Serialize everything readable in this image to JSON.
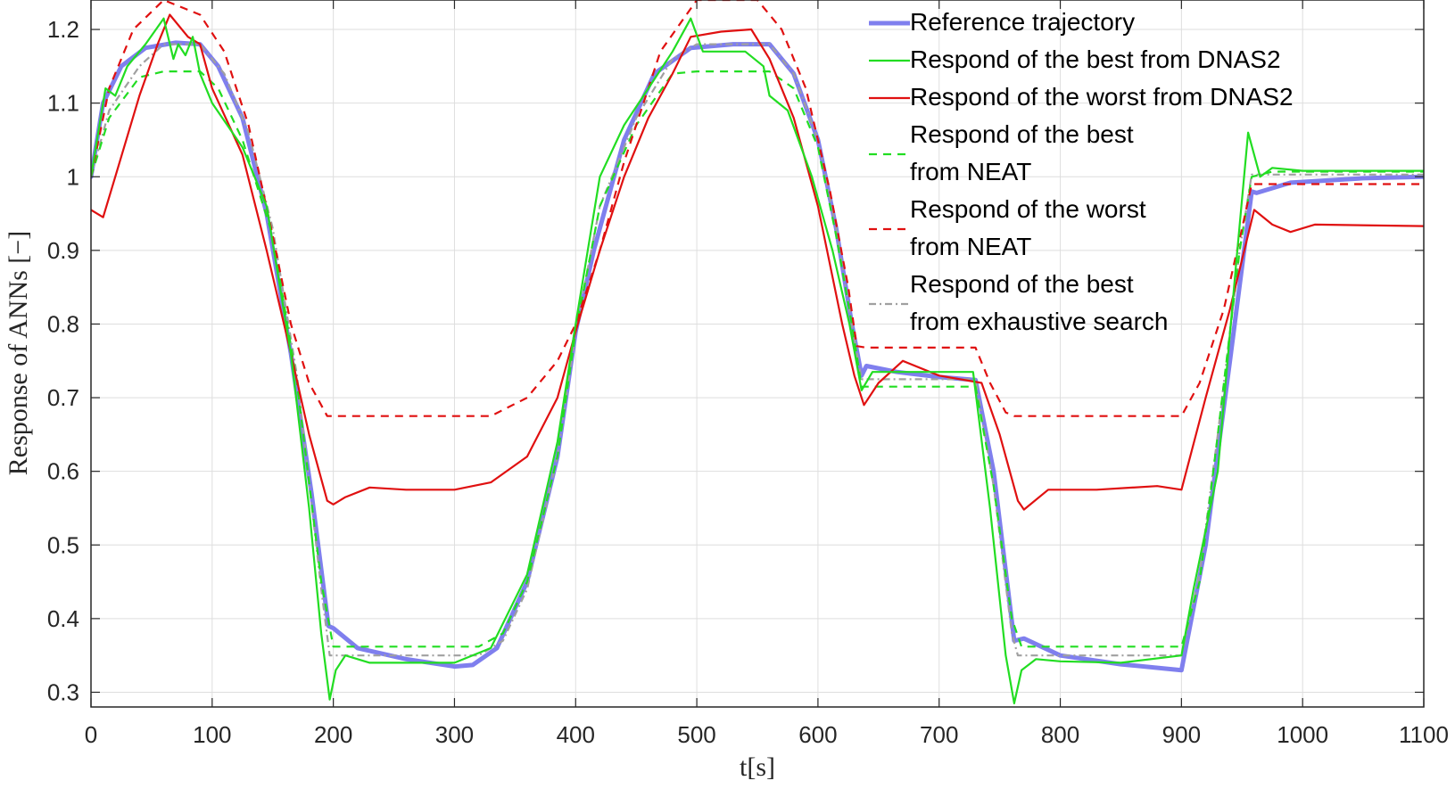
{
  "chart_data": {
    "type": "line",
    "xlabel": "t[s]",
    "ylabel": "Response of ANNs [−]",
    "xlim": [
      0,
      1100
    ],
    "ylim": [
      0.28,
      1.24
    ],
    "x_ticks": [
      0,
      100,
      200,
      300,
      400,
      500,
      600,
      700,
      800,
      900,
      1000,
      1100
    ],
    "y_ticks": [
      0.3,
      0.4,
      0.5,
      0.6,
      0.7,
      0.8,
      0.9,
      1,
      1.1,
      1.2
    ],
    "grid": true,
    "legend_position": "top-right",
    "series": [
      {
        "name": "Reference trajectory",
        "color": "#7f7fee",
        "style": "solid-thick",
        "points": [
          [
            0,
            1.0
          ],
          [
            10,
            1.1
          ],
          [
            25,
            1.15
          ],
          [
            45,
            1.175
          ],
          [
            70,
            1.182
          ],
          [
            90,
            1.18
          ],
          [
            105,
            1.15
          ],
          [
            125,
            1.08
          ],
          [
            145,
            0.95
          ],
          [
            165,
            0.76
          ],
          [
            182,
            0.57
          ],
          [
            196,
            0.39
          ],
          [
            200,
            0.387
          ],
          [
            220,
            0.36
          ],
          [
            260,
            0.345
          ],
          [
            300,
            0.335
          ],
          [
            315,
            0.337
          ],
          [
            335,
            0.36
          ],
          [
            360,
            0.45
          ],
          [
            385,
            0.62
          ],
          [
            400,
            0.79
          ],
          [
            415,
            0.9
          ],
          [
            440,
            1.05
          ],
          [
            465,
            1.14
          ],
          [
            495,
            1.175
          ],
          [
            530,
            1.18
          ],
          [
            560,
            1.18
          ],
          [
            580,
            1.14
          ],
          [
            600,
            1.05
          ],
          [
            615,
            0.93
          ],
          [
            628,
            0.8
          ],
          [
            636,
            0.73
          ],
          [
            640,
            0.743
          ],
          [
            665,
            0.735
          ],
          [
            700,
            0.728
          ],
          [
            730,
            0.724
          ],
          [
            745,
            0.6
          ],
          [
            762,
            0.37
          ],
          [
            770,
            0.373
          ],
          [
            800,
            0.35
          ],
          [
            850,
            0.338
          ],
          [
            900,
            0.33
          ],
          [
            920,
            0.5
          ],
          [
            940,
            0.75
          ],
          [
            958,
            0.98
          ],
          [
            962,
            0.978
          ],
          [
            990,
            0.992
          ],
          [
            1050,
            0.998
          ],
          [
            1100,
            1.0
          ]
        ]
      },
      {
        "name": "Respond of the best from DNAS2",
        "color": "#22dd22",
        "style": "solid",
        "points": [
          [
            0,
            1.0
          ],
          [
            12,
            1.12
          ],
          [
            20,
            1.11
          ],
          [
            30,
            1.15
          ],
          [
            45,
            1.18
          ],
          [
            60,
            1.215
          ],
          [
            68,
            1.16
          ],
          [
            72,
            1.18
          ],
          [
            78,
            1.165
          ],
          [
            84,
            1.19
          ],
          [
            90,
            1.14
          ],
          [
            100,
            1.1
          ],
          [
            125,
            1.04
          ],
          [
            145,
            0.96
          ],
          [
            165,
            0.76
          ],
          [
            180,
            0.55
          ],
          [
            190,
            0.38
          ],
          [
            197,
            0.29
          ],
          [
            202,
            0.33
          ],
          [
            210,
            0.35
          ],
          [
            230,
            0.34
          ],
          [
            300,
            0.34
          ],
          [
            330,
            0.36
          ],
          [
            360,
            0.46
          ],
          [
            385,
            0.64
          ],
          [
            400,
            0.8
          ],
          [
            420,
            1.0
          ],
          [
            440,
            1.07
          ],
          [
            460,
            1.12
          ],
          [
            480,
            1.17
          ],
          [
            495,
            1.215
          ],
          [
            505,
            1.17
          ],
          [
            520,
            1.17
          ],
          [
            540,
            1.17
          ],
          [
            555,
            1.15
          ],
          [
            560,
            1.11
          ],
          [
            575,
            1.09
          ],
          [
            595,
            1.0
          ],
          [
            612,
            0.9
          ],
          [
            626,
            0.8
          ],
          [
            636,
            0.71
          ],
          [
            645,
            0.735
          ],
          [
            700,
            0.735
          ],
          [
            728,
            0.735
          ],
          [
            742,
            0.55
          ],
          [
            755,
            0.35
          ],
          [
            762,
            0.285
          ],
          [
            768,
            0.33
          ],
          [
            780,
            0.345
          ],
          [
            800,
            0.342
          ],
          [
            850,
            0.34
          ],
          [
            900,
            0.35
          ],
          [
            910,
            0.44
          ],
          [
            930,
            0.6
          ],
          [
            945,
            0.88
          ],
          [
            955,
            1.06
          ],
          [
            965,
            1.0
          ],
          [
            975,
            1.012
          ],
          [
            1000,
            1.008
          ],
          [
            1100,
            1.008
          ]
        ]
      },
      {
        "name": "Respond of the worst from DNAS2",
        "color": "#e01010",
        "style": "solid",
        "points": [
          [
            0,
            0.955
          ],
          [
            10,
            0.945
          ],
          [
            20,
            1.0
          ],
          [
            40,
            1.11
          ],
          [
            55,
            1.18
          ],
          [
            65,
            1.22
          ],
          [
            80,
            1.19
          ],
          [
            90,
            1.18
          ],
          [
            100,
            1.12
          ],
          [
            125,
            1.03
          ],
          [
            145,
            0.9
          ],
          [
            165,
            0.76
          ],
          [
            180,
            0.65
          ],
          [
            195,
            0.56
          ],
          [
            200,
            0.555
          ],
          [
            210,
            0.565
          ],
          [
            230,
            0.578
          ],
          [
            260,
            0.575
          ],
          [
            300,
            0.575
          ],
          [
            330,
            0.585
          ],
          [
            360,
            0.62
          ],
          [
            385,
            0.7
          ],
          [
            400,
            0.79
          ],
          [
            420,
            0.9
          ],
          [
            440,
            1.0
          ],
          [
            460,
            1.08
          ],
          [
            480,
            1.14
          ],
          [
            495,
            1.19
          ],
          [
            520,
            1.197
          ],
          [
            545,
            1.2
          ],
          [
            560,
            1.16
          ],
          [
            580,
            1.08
          ],
          [
            600,
            0.96
          ],
          [
            620,
            0.8
          ],
          [
            630,
            0.73
          ],
          [
            638,
            0.69
          ],
          [
            650,
            0.72
          ],
          [
            670,
            0.75
          ],
          [
            700,
            0.73
          ],
          [
            735,
            0.72
          ],
          [
            750,
            0.65
          ],
          [
            765,
            0.56
          ],
          [
            770,
            0.548
          ],
          [
            790,
            0.575
          ],
          [
            830,
            0.575
          ],
          [
            880,
            0.58
          ],
          [
            900,
            0.575
          ],
          [
            920,
            0.7
          ],
          [
            940,
            0.82
          ],
          [
            960,
            0.955
          ],
          [
            975,
            0.935
          ],
          [
            990,
            0.925
          ],
          [
            1010,
            0.935
          ],
          [
            1100,
            0.933
          ]
        ]
      },
      {
        "name": "Respond of the best from NEAT",
        "color": "#22dd22",
        "style": "dashed",
        "points": [
          [
            0,
            1.0
          ],
          [
            15,
            1.08
          ],
          [
            40,
            1.135
          ],
          [
            60,
            1.143
          ],
          [
            90,
            1.143
          ],
          [
            105,
            1.12
          ],
          [
            125,
            1.05
          ],
          [
            150,
            0.92
          ],
          [
            170,
            0.72
          ],
          [
            190,
            0.45
          ],
          [
            200,
            0.362
          ],
          [
            230,
            0.362
          ],
          [
            320,
            0.362
          ],
          [
            340,
            0.38
          ],
          [
            360,
            0.45
          ],
          [
            385,
            0.62
          ],
          [
            400,
            0.79
          ],
          [
            420,
            0.96
          ],
          [
            450,
            1.07
          ],
          [
            480,
            1.14
          ],
          [
            500,
            1.143
          ],
          [
            560,
            1.143
          ],
          [
            580,
            1.12
          ],
          [
            600,
            1.04
          ],
          [
            615,
            0.92
          ],
          [
            628,
            0.8
          ],
          [
            636,
            0.715
          ],
          [
            645,
            0.715
          ],
          [
            730,
            0.715
          ],
          [
            745,
            0.58
          ],
          [
            760,
            0.4
          ],
          [
            768,
            0.362
          ],
          [
            800,
            0.362
          ],
          [
            900,
            0.362
          ],
          [
            915,
            0.45
          ],
          [
            930,
            0.65
          ],
          [
            948,
            0.9
          ],
          [
            958,
            1.0
          ],
          [
            975,
            1.007
          ],
          [
            1100,
            1.007
          ]
        ]
      },
      {
        "name": "Respond of the worst from NEAT",
        "color": "#e01010",
        "style": "dashed",
        "points": [
          [
            0,
            1.0
          ],
          [
            15,
            1.12
          ],
          [
            35,
            1.2
          ],
          [
            60,
            1.24
          ],
          [
            90,
            1.22
          ],
          [
            110,
            1.17
          ],
          [
            130,
            1.07
          ],
          [
            150,
            0.92
          ],
          [
            165,
            0.8
          ],
          [
            180,
            0.72
          ],
          [
            195,
            0.675
          ],
          [
            250,
            0.675
          ],
          [
            330,
            0.675
          ],
          [
            360,
            0.7
          ],
          [
            385,
            0.75
          ],
          [
            400,
            0.8
          ],
          [
            420,
            0.9
          ],
          [
            440,
            1.02
          ],
          [
            470,
            1.17
          ],
          [
            500,
            1.24
          ],
          [
            550,
            1.24
          ],
          [
            570,
            1.2
          ],
          [
            590,
            1.12
          ],
          [
            610,
            0.98
          ],
          [
            625,
            0.85
          ],
          [
            632,
            0.77
          ],
          [
            640,
            0.768
          ],
          [
            730,
            0.768
          ],
          [
            742,
            0.72
          ],
          [
            755,
            0.68
          ],
          [
            762,
            0.675
          ],
          [
            800,
            0.675
          ],
          [
            900,
            0.675
          ],
          [
            915,
            0.72
          ],
          [
            935,
            0.82
          ],
          [
            950,
            0.93
          ],
          [
            958,
            0.99
          ],
          [
            975,
            0.99
          ],
          [
            1100,
            0.99
          ]
        ]
      },
      {
        "name": "Respond of the best from exhaustive search",
        "color": "#a0a0a0",
        "style": "dash-dot",
        "points": [
          [
            0,
            1.0
          ],
          [
            15,
            1.09
          ],
          [
            40,
            1.15
          ],
          [
            60,
            1.18
          ],
          [
            90,
            1.18
          ],
          [
            110,
            1.14
          ],
          [
            130,
            1.06
          ],
          [
            150,
            0.93
          ],
          [
            170,
            0.73
          ],
          [
            190,
            0.44
          ],
          [
            197,
            0.35
          ],
          [
            230,
            0.35
          ],
          [
            320,
            0.35
          ],
          [
            340,
            0.37
          ],
          [
            360,
            0.44
          ],
          [
            385,
            0.62
          ],
          [
            400,
            0.79
          ],
          [
            420,
            0.96
          ],
          [
            450,
            1.08
          ],
          [
            480,
            1.16
          ],
          [
            500,
            1.18
          ],
          [
            560,
            1.18
          ],
          [
            580,
            1.14
          ],
          [
            600,
            1.05
          ],
          [
            615,
            0.93
          ],
          [
            628,
            0.8
          ],
          [
            636,
            0.725
          ],
          [
            645,
            0.725
          ],
          [
            730,
            0.725
          ],
          [
            745,
            0.58
          ],
          [
            760,
            0.38
          ],
          [
            765,
            0.35
          ],
          [
            800,
            0.35
          ],
          [
            900,
            0.35
          ],
          [
            915,
            0.46
          ],
          [
            930,
            0.65
          ],
          [
            948,
            0.9
          ],
          [
            958,
            1.003
          ],
          [
            975,
            1.003
          ],
          [
            1100,
            1.003
          ]
        ]
      }
    ]
  }
}
